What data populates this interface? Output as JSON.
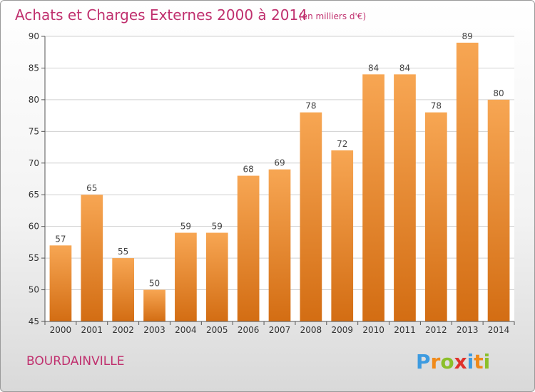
{
  "chart_data": {
    "type": "bar",
    "title": "Achats et Charges Externes 2000 à 2014",
    "subtitle": "(en milliers d'€)",
    "categories": [
      "2000",
      "2001",
      "2002",
      "2003",
      "2004",
      "2005",
      "2006",
      "2007",
      "2008",
      "2009",
      "2010",
      "2011",
      "2012",
      "2013",
      "2014"
    ],
    "values": [
      57,
      65,
      55,
      50,
      59,
      59,
      68,
      69,
      78,
      72,
      84,
      84,
      78,
      89,
      80
    ],
    "ylim": [
      45,
      90
    ],
    "yticks": [
      45,
      50,
      55,
      60,
      65,
      70,
      75,
      80,
      85,
      90
    ],
    "grid": true,
    "bar_color_top": "#f7a653",
    "bar_color_bottom": "#d36d13",
    "xlabel": "",
    "ylabel": ""
  },
  "footer": {
    "town": "BOURDAINVILLE",
    "logo": [
      "P",
      "r",
      "o",
      "x",
      "i",
      "t",
      "i"
    ],
    "logo_colors": [
      "#3d9be0",
      "#f08a1a",
      "#8bbf2a",
      "#e0312b",
      "#3d9be0",
      "#f08a1a",
      "#8bbf2a"
    ]
  }
}
